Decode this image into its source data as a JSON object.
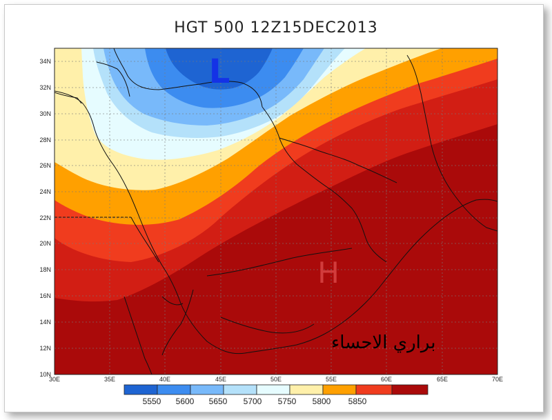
{
  "title": "HGT 500 12Z15DEC2013",
  "lat_labels": [
    "34N",
    "32N",
    "30N",
    "28N",
    "26N",
    "24N",
    "22N",
    "20N",
    "18N",
    "16N",
    "14N",
    "12N",
    "10N"
  ],
  "lon_labels": [
    "30E",
    "35E",
    "40E",
    "45E",
    "50E",
    "55E",
    "60E",
    "65E",
    "70E"
  ],
  "low_label": "L",
  "high_label": "H",
  "watermark": "براري الاحساء",
  "colorbar_labels": [
    "5550",
    "5600",
    "5650",
    "5700",
    "5750",
    "5800",
    "5850"
  ],
  "colors": {
    "b1": "#1e64d2",
    "b2": "#3c8cf0",
    "b3": "#78b9fa",
    "b4": "#b4e1fa",
    "b5": "#e6fcff",
    "y1": "#fff0aa",
    "o1": "#ffa000",
    "r1": "#f03c1e",
    "r2": "#d21e14",
    "r3": "#aa0a0a",
    "low": "#1432e6",
    "high": "#d23c3c"
  }
}
